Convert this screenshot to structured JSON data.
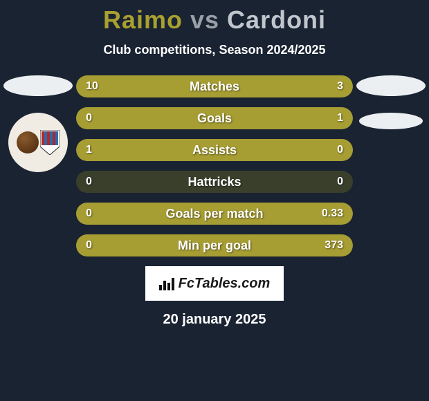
{
  "background_color": "#1a2332",
  "title": {
    "p1": "Raimo",
    "vs": "vs",
    "p2": "Cardoni",
    "p1_color": "#a8a030",
    "vs_color": "#9aa0a8",
    "p2_color": "#c0c6cc",
    "fontsize": 36
  },
  "subtitle": "Club competitions, Season 2024/2025",
  "bars": {
    "track_color": "#3a3f2c",
    "fill_color": "#a69d33",
    "height": 32,
    "radius": 16,
    "label_fontsize": 18,
    "value_fontsize": 16,
    "items": [
      {
        "label": "Matches",
        "left_val": "10",
        "right_val": "3",
        "left_pct": 77,
        "right_pct": 23
      },
      {
        "label": "Goals",
        "left_val": "0",
        "right_val": "1",
        "left_pct": 0,
        "right_pct": 100
      },
      {
        "label": "Assists",
        "left_val": "1",
        "right_val": "0",
        "left_pct": 100,
        "right_pct": 0
      },
      {
        "label": "Hattricks",
        "left_val": "0",
        "right_val": "0",
        "left_pct": 0,
        "right_pct": 0
      },
      {
        "label": "Goals per match",
        "left_val": "0",
        "right_val": "0.33",
        "left_pct": 0,
        "right_pct": 100
      },
      {
        "label": "Min per goal",
        "left_val": "0",
        "right_val": "373",
        "left_pct": 0,
        "right_pct": 100
      }
    ]
  },
  "left_badge": {
    "ball_color_light": "#8a5a2c",
    "ball_color_dark": "#5b3616",
    "stripes": [
      "#b02828",
      "#2a6bb0"
    ]
  },
  "brand": "FcTables.com",
  "date": "20 january 2025"
}
